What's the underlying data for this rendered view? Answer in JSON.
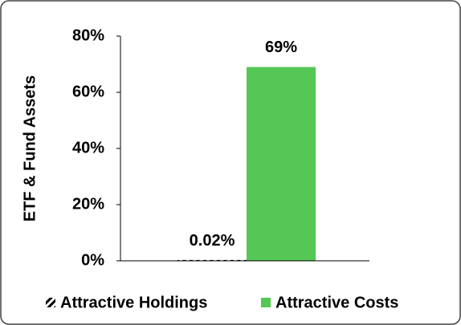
{
  "chart_data": {
    "type": "bar",
    "categories": [
      null
    ],
    "y_label": "ETF & Fund Assets",
    "series": [
      {
        "name": "Attractive Holdings",
        "color": "#000000",
        "pattern": "diagonal-hatch",
        "values": [
          0.02
        ],
        "value_labels": [
          "0.02%"
        ]
      },
      {
        "name": "Attractive Costs",
        "color": "#55c754",
        "values": [
          69
        ],
        "value_labels": [
          "69%"
        ]
      }
    ],
    "ylim": [
      0,
      80
    ],
    "yticks": [
      {
        "value": 0,
        "label": "0%"
      },
      {
        "value": 20,
        "label": "20%"
      },
      {
        "value": 40,
        "label": "40%"
      },
      {
        "value": 60,
        "label": "60%"
      },
      {
        "value": 80,
        "label": "80%"
      }
    ],
    "grid": false,
    "legend": "bottom"
  }
}
